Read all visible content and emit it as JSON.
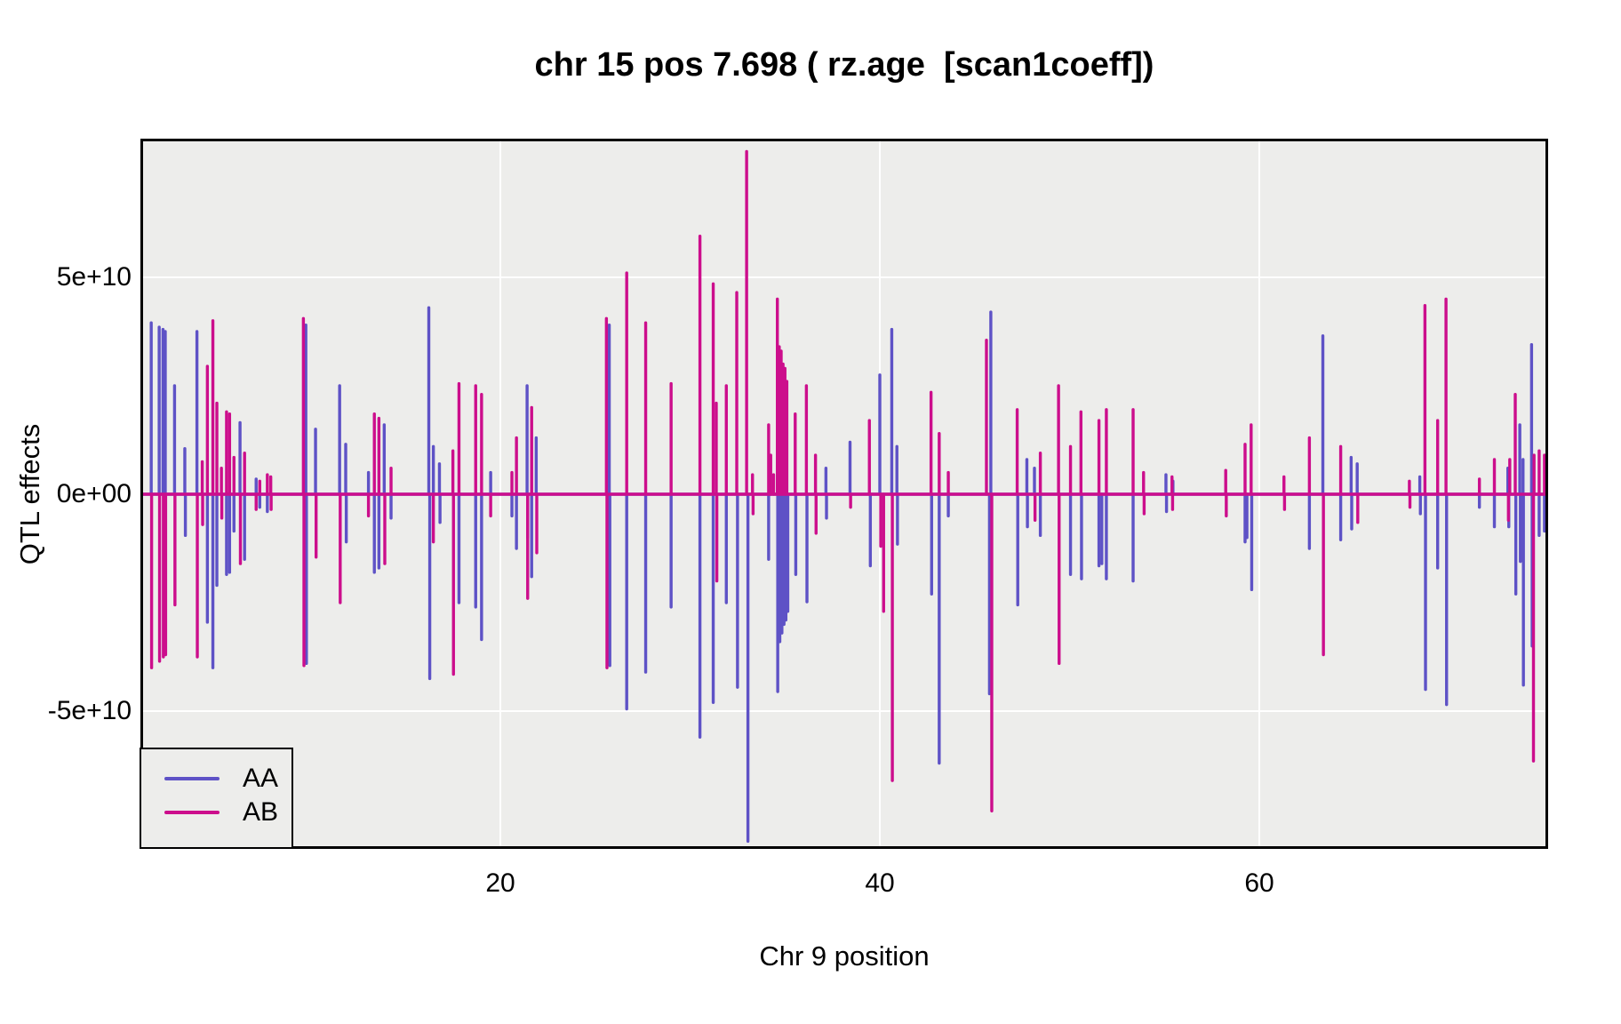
{
  "title": "chr 15 pos 7.698 ( rz.age  [scan1coeff])",
  "x_axis": {
    "label": "Chr 9 position",
    "tick_labels": [
      "20",
      "40",
      "60"
    ]
  },
  "y_axis": {
    "label": "QTL effects",
    "tick_labels": [
      "5e+10",
      "0e+00",
      "-5e+10"
    ]
  },
  "legend": {
    "items": [
      {
        "label": "AA",
        "color": "#5E52C6"
      },
      {
        "label": "AB",
        "color": "#CC0E8C"
      }
    ]
  },
  "panel": {
    "bg": "#EDEDEB",
    "grid_color": "#FFFFFF",
    "border_color": "#000000"
  },
  "chart_data": {
    "type": "line",
    "title": "chr 15 pos 7.698 ( rz.age  [scan1coeff])",
    "xlabel": "Chr 9 position",
    "ylabel": "QTL effects",
    "xlim": [
      1.0,
      75.2
    ],
    "y_unit": "1e10",
    "ylim_e10": [
      -8.2,
      8.2
    ],
    "x_ticks": [
      20,
      40,
      60
    ],
    "y_ticks_e10": [
      5,
      0,
      -5
    ],
    "grid": true,
    "legend_position": "bottom-left",
    "baseline_e10": 0,
    "series": [
      {
        "name": "AA",
        "color": "#5E52C6",
        "spikes": [
          [
            1.6,
            3.95
          ],
          [
            2.02,
            3.85
          ],
          [
            2.22,
            3.8
          ],
          [
            2.34,
            3.75
          ],
          [
            2.83,
            2.5
          ],
          [
            3.37,
            1.05
          ],
          [
            3.4,
            -0.95
          ],
          [
            4.01,
            3.75
          ],
          [
            4.56,
            -2.95
          ],
          [
            4.85,
            -4.0
          ],
          [
            5.06,
            -2.1
          ],
          [
            5.57,
            -1.85
          ],
          [
            5.73,
            -1.8
          ],
          [
            5.96,
            -0.85
          ],
          [
            6.28,
            1.65
          ],
          [
            6.52,
            -1.5
          ],
          [
            7.13,
            0.35
          ],
          [
            7.32,
            -0.3
          ],
          [
            7.72,
            -0.4
          ],
          [
            9.75,
            3.9
          ],
          [
            9.78,
            -3.9
          ],
          [
            10.26,
            1.5
          ],
          [
            11.53,
            2.5
          ],
          [
            11.85,
            1.15
          ],
          [
            11.88,
            -1.1
          ],
          [
            13.05,
            0.5
          ],
          [
            13.36,
            -1.8
          ],
          [
            13.6,
            -1.7
          ],
          [
            13.88,
            1.6
          ],
          [
            14.24,
            -0.55
          ],
          [
            16.23,
            4.3
          ],
          [
            16.28,
            -4.25
          ],
          [
            16.47,
            1.1
          ],
          [
            16.79,
            0.7
          ],
          [
            16.82,
            -0.65
          ],
          [
            17.82,
            -2.5
          ],
          [
            18.7,
            -2.6
          ],
          [
            19.01,
            -3.35
          ],
          [
            19.49,
            0.5
          ],
          [
            20.61,
            -0.5
          ],
          [
            20.85,
            -1.25
          ],
          [
            21.41,
            2.5
          ],
          [
            21.44,
            -1.0
          ],
          [
            21.65,
            -1.9
          ],
          [
            21.89,
            1.3
          ],
          [
            25.74,
            3.9
          ],
          [
            25.77,
            -3.95
          ],
          [
            26.66,
            -4.95
          ],
          [
            27.66,
            -4.1
          ],
          [
            29.0,
            -2.6
          ],
          [
            30.52,
            -5.6
          ],
          [
            31.22,
            -4.8
          ],
          [
            31.91,
            -2.5
          ],
          [
            32.5,
            -4.45
          ],
          [
            33.05,
            -8.0
          ],
          [
            34.14,
            -1.5
          ],
          [
            34.62,
            -4.55
          ],
          [
            34.73,
            -3.4
          ],
          [
            34.84,
            -3.2
          ],
          [
            34.95,
            -3.0
          ],
          [
            35.05,
            -2.9
          ],
          [
            35.15,
            -2.7
          ],
          [
            35.57,
            -1.85
          ],
          [
            36.16,
            -2.48
          ],
          [
            37.16,
            0.6
          ],
          [
            37.19,
            -0.55
          ],
          [
            38.43,
            1.2
          ],
          [
            39.5,
            -1.65
          ],
          [
            40.0,
            2.75
          ],
          [
            40.63,
            3.8
          ],
          [
            40.9,
            1.1
          ],
          [
            40.93,
            -1.15
          ],
          [
            42.73,
            -2.3
          ],
          [
            43.13,
            -6.2
          ],
          [
            43.61,
            -0.5
          ],
          [
            45.78,
            -4.6
          ],
          [
            45.85,
            4.2
          ],
          [
            47.27,
            -2.55
          ],
          [
            47.75,
            0.8
          ],
          [
            47.78,
            -0.75
          ],
          [
            48.15,
            0.6
          ],
          [
            48.46,
            -0.95
          ],
          [
            50.05,
            -1.85
          ],
          [
            50.63,
            -1.95
          ],
          [
            51.55,
            -1.65
          ],
          [
            51.7,
            -1.6
          ],
          [
            51.94,
            -1.95
          ],
          [
            53.35,
            -2.0
          ],
          [
            55.08,
            0.45
          ],
          [
            55.11,
            -0.4
          ],
          [
            55.45,
            0.3
          ],
          [
            59.25,
            -1.1
          ],
          [
            59.35,
            -1.0
          ],
          [
            59.6,
            -2.2
          ],
          [
            62.64,
            -1.25
          ],
          [
            63.35,
            3.65
          ],
          [
            64.29,
            -1.05
          ],
          [
            64.84,
            0.85
          ],
          [
            64.87,
            -0.8
          ],
          [
            65.16,
            0.7
          ],
          [
            68.46,
            0.4
          ],
          [
            68.49,
            -0.45
          ],
          [
            68.76,
            -4.5
          ],
          [
            69.4,
            -1.7
          ],
          [
            69.87,
            -4.85
          ],
          [
            71.6,
            -0.3
          ],
          [
            72.39,
            -0.75
          ],
          [
            73.1,
            0.6
          ],
          [
            73.15,
            -0.75
          ],
          [
            73.52,
            -2.3
          ],
          [
            73.73,
            1.6
          ],
          [
            73.76,
            -1.55
          ],
          [
            73.9,
            0.8
          ],
          [
            73.92,
            -4.4
          ],
          [
            74.35,
            3.45
          ],
          [
            74.38,
            -3.5
          ],
          [
            74.75,
            -0.95
          ],
          [
            75.03,
            -0.85
          ]
        ]
      },
      {
        "name": "AB",
        "color": "#CC0E8C",
        "spikes": [
          [
            1.62,
            -4.0
          ],
          [
            2.04,
            -3.85
          ],
          [
            2.24,
            -3.75
          ],
          [
            2.36,
            -3.7
          ],
          [
            2.85,
            -2.55
          ],
          [
            4.03,
            -3.75
          ],
          [
            4.29,
            0.75
          ],
          [
            4.31,
            -0.7
          ],
          [
            4.56,
            2.95
          ],
          [
            4.85,
            4.0
          ],
          [
            5.06,
            2.1
          ],
          [
            5.3,
            0.6
          ],
          [
            5.32,
            -0.55
          ],
          [
            5.57,
            1.9
          ],
          [
            5.73,
            1.85
          ],
          [
            5.96,
            0.85
          ],
          [
            6.3,
            -1.6
          ],
          [
            6.52,
            0.95
          ],
          [
            7.13,
            -0.35
          ],
          [
            7.32,
            0.3
          ],
          [
            7.72,
            0.45
          ],
          [
            7.9,
            0.4
          ],
          [
            7.92,
            -0.35
          ],
          [
            9.62,
            4.05
          ],
          [
            9.65,
            -3.95
          ],
          [
            10.29,
            -1.45
          ],
          [
            11.56,
            -2.5
          ],
          [
            13.05,
            -0.5
          ],
          [
            13.36,
            1.85
          ],
          [
            13.6,
            1.75
          ],
          [
            13.91,
            -1.6
          ],
          [
            14.24,
            0.6
          ],
          [
            16.47,
            -1.1
          ],
          [
            17.5,
            1.0
          ],
          [
            17.53,
            -4.15
          ],
          [
            17.82,
            2.55
          ],
          [
            18.7,
            2.5
          ],
          [
            19.01,
            2.3
          ],
          [
            19.49,
            -0.5
          ],
          [
            20.61,
            0.5
          ],
          [
            20.85,
            1.3
          ],
          [
            21.44,
            -2.4
          ],
          [
            21.65,
            2.0
          ],
          [
            21.92,
            -1.35
          ],
          [
            25.59,
            4.05
          ],
          [
            25.62,
            -4.0
          ],
          [
            26.66,
            5.1
          ],
          [
            27.66,
            3.95
          ],
          [
            29.0,
            2.55
          ],
          [
            30.52,
            5.95
          ],
          [
            31.22,
            4.85
          ],
          [
            31.38,
            2.1
          ],
          [
            31.41,
            -2.0
          ],
          [
            31.91,
            2.5
          ],
          [
            32.46,
            4.65
          ],
          [
            32.98,
            7.9
          ],
          [
            33.29,
            0.45
          ],
          [
            33.32,
            -0.45
          ],
          [
            34.14,
            1.6
          ],
          [
            34.25,
            0.9
          ],
          [
            34.4,
            0.45
          ],
          [
            34.6,
            4.5
          ],
          [
            34.7,
            3.4
          ],
          [
            34.8,
            3.3
          ],
          [
            34.9,
            3.0
          ],
          [
            35.0,
            2.9
          ],
          [
            35.1,
            2.6
          ],
          [
            35.54,
            1.85
          ],
          [
            36.13,
            2.5
          ],
          [
            36.61,
            0.9
          ],
          [
            36.64,
            -0.9
          ],
          [
            38.46,
            -0.3
          ],
          [
            39.45,
            1.7
          ],
          [
            40.05,
            -1.2
          ],
          [
            40.2,
            -2.7
          ],
          [
            40.66,
            -6.6
          ],
          [
            42.7,
            2.35
          ],
          [
            43.13,
            1.4
          ],
          [
            43.61,
            0.5
          ],
          [
            45.62,
            3.55
          ],
          [
            45.9,
            -7.3
          ],
          [
            47.24,
            1.95
          ],
          [
            48.18,
            -0.6
          ],
          [
            48.46,
            0.95
          ],
          [
            49.42,
            2.5
          ],
          [
            49.45,
            -3.9
          ],
          [
            50.05,
            1.1
          ],
          [
            50.6,
            1.9
          ],
          [
            51.55,
            1.7
          ],
          [
            51.94,
            1.95
          ],
          [
            53.35,
            1.95
          ],
          [
            53.9,
            0.5
          ],
          [
            53.93,
            -0.45
          ],
          [
            55.4,
            0.4
          ],
          [
            55.43,
            -0.35
          ],
          [
            58.23,
            0.55
          ],
          [
            58.26,
            -0.5
          ],
          [
            59.25,
            1.15
          ],
          [
            59.57,
            1.6
          ],
          [
            61.3,
            0.4
          ],
          [
            61.33,
            -0.35
          ],
          [
            62.64,
            1.3
          ],
          [
            63.38,
            -3.7
          ],
          [
            64.29,
            1.1
          ],
          [
            65.19,
            -0.65
          ],
          [
            67.91,
            0.3
          ],
          [
            67.94,
            -0.3
          ],
          [
            68.73,
            4.35
          ],
          [
            69.4,
            1.7
          ],
          [
            69.84,
            4.5
          ],
          [
            71.6,
            0.35
          ],
          [
            72.39,
            0.8
          ],
          [
            73.13,
            -0.6
          ],
          [
            73.2,
            0.8
          ],
          [
            73.49,
            2.3
          ],
          [
            74.45,
            -6.15
          ],
          [
            74.48,
            0.9
          ],
          [
            74.75,
            1.0
          ],
          [
            75.03,
            0.9
          ],
          [
            75.15,
            0.85
          ]
        ]
      }
    ]
  }
}
